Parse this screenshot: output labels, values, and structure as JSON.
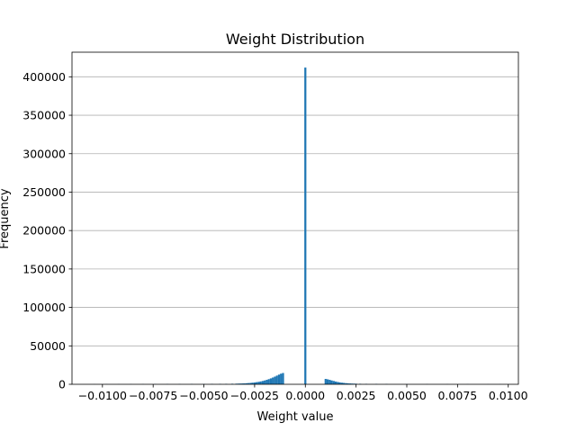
{
  "chart_data": {
    "type": "bar",
    "title": "Weight Distribution",
    "xlabel": "Weight value",
    "ylabel": "Frequency",
    "xlim": [
      -0.0115,
      0.0105
    ],
    "ylim": [
      0,
      432000
    ],
    "grid": "y",
    "bar_color": "#1f77b4",
    "x_ticks": [
      {
        "value": -0.01,
        "label": "−0.0100"
      },
      {
        "value": -0.0075,
        "label": "−0.0075"
      },
      {
        "value": -0.005,
        "label": "−0.0050"
      },
      {
        "value": -0.0025,
        "label": "−0.0025"
      },
      {
        "value": 0.0,
        "label": "0.0000"
      },
      {
        "value": 0.0025,
        "label": "0.0025"
      },
      {
        "value": 0.005,
        "label": "0.0050"
      },
      {
        "value": 0.0075,
        "label": "0.0075"
      },
      {
        "value": 0.01,
        "label": "0.0100"
      }
    ],
    "y_ticks": [
      {
        "value": 0,
        "label": "0"
      },
      {
        "value": 50000,
        "label": "50000"
      },
      {
        "value": 100000,
        "label": "100000"
      },
      {
        "value": 150000,
        "label": "150000"
      },
      {
        "value": 200000,
        "label": "200000"
      },
      {
        "value": 250000,
        "label": "250000"
      },
      {
        "value": 300000,
        "label": "300000"
      },
      {
        "value": 350000,
        "label": "350000"
      },
      {
        "value": 400000,
        "label": "400000"
      }
    ],
    "bin_width": 0.0001,
    "bins": [
      {
        "x": -0.0104,
        "y": 150
      },
      {
        "x": -0.0098,
        "y": 180
      },
      {
        "x": -0.0092,
        "y": 200
      },
      {
        "x": -0.0086,
        "y": 220
      },
      {
        "x": -0.008,
        "y": 250
      },
      {
        "x": -0.0074,
        "y": 280
      },
      {
        "x": -0.0068,
        "y": 300
      },
      {
        "x": -0.0062,
        "y": 350
      },
      {
        "x": -0.0056,
        "y": 400
      },
      {
        "x": -0.005,
        "y": 450
      },
      {
        "x": -0.0046,
        "y": 500
      },
      {
        "x": -0.0042,
        "y": 550
      },
      {
        "x": -0.0039,
        "y": 600
      },
      {
        "x": -0.0036,
        "y": 700
      },
      {
        "x": -0.0034,
        "y": 800
      },
      {
        "x": -0.0033,
        "y": 900
      },
      {
        "x": -0.0032,
        "y": 1000
      },
      {
        "x": -0.0031,
        "y": 1100
      },
      {
        "x": -0.003,
        "y": 1200
      },
      {
        "x": -0.0029,
        "y": 1400
      },
      {
        "x": -0.0028,
        "y": 1600
      },
      {
        "x": -0.0027,
        "y": 1800
      },
      {
        "x": -0.0026,
        "y": 2100
      },
      {
        "x": -0.0025,
        "y": 2400
      },
      {
        "x": -0.0024,
        "y": 2800
      },
      {
        "x": -0.0023,
        "y": 3200
      },
      {
        "x": -0.0022,
        "y": 3700
      },
      {
        "x": -0.0021,
        "y": 4300
      },
      {
        "x": -0.002,
        "y": 5000
      },
      {
        "x": -0.0019,
        "y": 5800
      },
      {
        "x": -0.0018,
        "y": 6700
      },
      {
        "x": -0.0017,
        "y": 7700
      },
      {
        "x": -0.0016,
        "y": 8800
      },
      {
        "x": -0.0015,
        "y": 10000
      },
      {
        "x": -0.0014,
        "y": 11300
      },
      {
        "x": -0.0013,
        "y": 12600
      },
      {
        "x": -0.0012,
        "y": 13800
      },
      {
        "x": -0.0011,
        "y": 14700
      },
      {
        "x": 0.0,
        "y": 412000
      },
      {
        "x": 0.001,
        "y": 7000
      },
      {
        "x": 0.0011,
        "y": 6500
      },
      {
        "x": 0.0012,
        "y": 5800
      },
      {
        "x": 0.0013,
        "y": 5000
      },
      {
        "x": 0.0014,
        "y": 4300
      },
      {
        "x": 0.0015,
        "y": 3600
      },
      {
        "x": 0.0016,
        "y": 3000
      },
      {
        "x": 0.0017,
        "y": 2500
      },
      {
        "x": 0.0018,
        "y": 2100
      },
      {
        "x": 0.0019,
        "y": 1800
      },
      {
        "x": 0.002,
        "y": 1500
      },
      {
        "x": 0.0021,
        "y": 1300
      },
      {
        "x": 0.0022,
        "y": 1100
      },
      {
        "x": 0.0023,
        "y": 950
      },
      {
        "x": 0.0024,
        "y": 850
      },
      {
        "x": 0.0025,
        "y": 750
      },
      {
        "x": 0.0027,
        "y": 650
      },
      {
        "x": 0.003,
        "y": 550
      },
      {
        "x": 0.0035,
        "y": 450
      },
      {
        "x": 0.004,
        "y": 380
      },
      {
        "x": 0.005,
        "y": 300
      },
      {
        "x": 0.006,
        "y": 250
      },
      {
        "x": 0.007,
        "y": 200
      },
      {
        "x": 0.008,
        "y": 170
      },
      {
        "x": 0.009,
        "y": 150
      },
      {
        "x": 0.0096,
        "y": 130
      }
    ]
  }
}
